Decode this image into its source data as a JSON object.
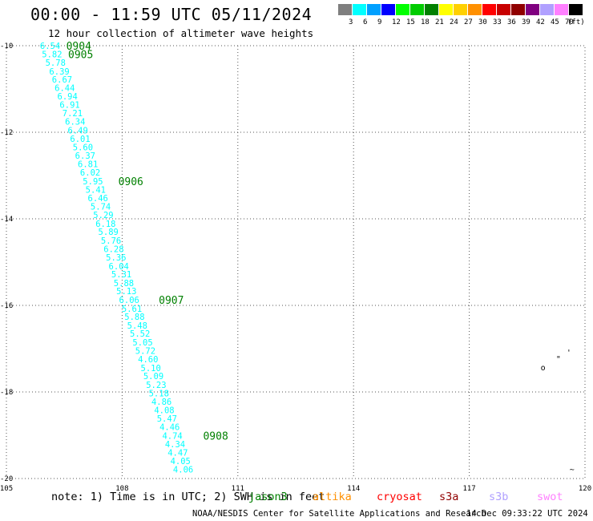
{
  "header": {
    "title": "00:00 - 11:59 UTC 05/11/2024",
    "subtitle": "12 hour collection of altimeter wave heights"
  },
  "color_scale": {
    "unit": "(ft)",
    "bins": [
      {
        "label": "3",
        "color": "#7f7f7f"
      },
      {
        "label": "6",
        "color": "#00ffff"
      },
      {
        "label": "9",
        "color": "#00a0ff"
      },
      {
        "label": "12",
        "color": "#0000ff"
      },
      {
        "label": "15",
        "color": "#00ff00"
      },
      {
        "label": "18",
        "color": "#00cc00"
      },
      {
        "label": "21",
        "color": "#008000"
      },
      {
        "label": "24",
        "color": "#ffff00"
      },
      {
        "label": "27",
        "color": "#ffd000"
      },
      {
        "label": "30",
        "color": "#ff9000"
      },
      {
        "label": "33",
        "color": "#ff0000"
      },
      {
        "label": "36",
        "color": "#c80000"
      },
      {
        "label": "39",
        "color": "#900000"
      },
      {
        "label": "42",
        "color": "#800080"
      },
      {
        "label": "45",
        "color": "#b0a0ff"
      },
      {
        "label": "70",
        "color": "#ff80ff"
      },
      {
        "label": "",
        "color": "#000000"
      }
    ]
  },
  "footer": {
    "note": "note: 1) Time is in UTC; 2) SWH is in feet",
    "missions": [
      {
        "label": "jason3",
        "color": "#008000"
      },
      {
        "label": "altika",
        "color": "#ff9000"
      },
      {
        "label": "cryosat",
        "color": "#ff0000"
      },
      {
        "label": "s3a",
        "color": "#900000"
      },
      {
        "label": "s3b",
        "color": "#b0a0ff"
      },
      {
        "label": "swot",
        "color": "#ff80ff"
      }
    ],
    "credit": "NOAA/NESDIS Center for Satellite Applications and Research",
    "timestamp": "14 Dec 09:33:22 UTC 2024"
  },
  "chart_data": {
    "type": "scatter",
    "x_ticks": [
      "105",
      "108",
      "111",
      "114",
      "117",
      "120"
    ],
    "y_ticks": [
      "-10",
      "-12",
      "-14",
      "-16",
      "-18",
      "-20"
    ],
    "xlim": [
      105,
      120
    ],
    "ylim": [
      -20,
      -10
    ],
    "grid": true,
    "track_color": "#00ffff",
    "time_label_color": "#008000",
    "track": [
      {
        "lon": 105.87,
        "lat": -10.0,
        "swh": "6.54"
      },
      {
        "lon": 105.92,
        "lat": -10.19,
        "swh": "5.82"
      },
      {
        "lon": 106.01,
        "lat": -10.39,
        "swh": "5.78"
      },
      {
        "lon": 106.11,
        "lat": -10.59,
        "swh": "6.39"
      },
      {
        "lon": 106.18,
        "lat": -10.78,
        "swh": "6.67"
      },
      {
        "lon": 106.25,
        "lat": -10.97,
        "swh": "6.44"
      },
      {
        "lon": 106.32,
        "lat": -11.17,
        "swh": "6.94"
      },
      {
        "lon": 106.38,
        "lat": -11.36,
        "swh": "6.91"
      },
      {
        "lon": 106.45,
        "lat": -11.56,
        "swh": "7.21"
      },
      {
        "lon": 106.52,
        "lat": -11.75,
        "swh": "6.34"
      },
      {
        "lon": 106.59,
        "lat": -11.95,
        "swh": "6.49"
      },
      {
        "lon": 106.65,
        "lat": -12.15,
        "swh": "6.01"
      },
      {
        "lon": 106.72,
        "lat": -12.34,
        "swh": "5.60"
      },
      {
        "lon": 106.78,
        "lat": -12.54,
        "swh": "6.37"
      },
      {
        "lon": 106.85,
        "lat": -12.73,
        "swh": "6.81"
      },
      {
        "lon": 106.91,
        "lat": -12.93,
        "swh": "6.02"
      },
      {
        "lon": 106.98,
        "lat": -13.13,
        "swh": "5.95"
      },
      {
        "lon": 107.05,
        "lat": -13.32,
        "swh": "5.41"
      },
      {
        "lon": 107.11,
        "lat": -13.52,
        "swh": "6.46"
      },
      {
        "lon": 107.18,
        "lat": -13.71,
        "swh": "5.74"
      },
      {
        "lon": 107.25,
        "lat": -13.91,
        "swh": "5.29"
      },
      {
        "lon": 107.31,
        "lat": -14.11,
        "swh": "6.18"
      },
      {
        "lon": 107.38,
        "lat": -14.3,
        "swh": "5.89"
      },
      {
        "lon": 107.45,
        "lat": -14.5,
        "swh": "5.76"
      },
      {
        "lon": 107.52,
        "lat": -14.69,
        "swh": "6.28"
      },
      {
        "lon": 107.58,
        "lat": -14.89,
        "swh": "5.36"
      },
      {
        "lon": 107.65,
        "lat": -15.09,
        "swh": "6.04"
      },
      {
        "lon": 107.72,
        "lat": -15.28,
        "swh": "5.31"
      },
      {
        "lon": 107.78,
        "lat": -15.48,
        "swh": "5.88"
      },
      {
        "lon": 107.85,
        "lat": -15.67,
        "swh": "5.13"
      },
      {
        "lon": 107.92,
        "lat": -15.87,
        "swh": "6.06"
      },
      {
        "lon": 107.99,
        "lat": -16.07,
        "swh": "5.61"
      },
      {
        "lon": 108.06,
        "lat": -16.26,
        "swh": "5.88"
      },
      {
        "lon": 108.13,
        "lat": -16.46,
        "swh": "5.48"
      },
      {
        "lon": 108.2,
        "lat": -16.65,
        "swh": "5.52"
      },
      {
        "lon": 108.27,
        "lat": -16.85,
        "swh": "5.05"
      },
      {
        "lon": 108.34,
        "lat": -17.05,
        "swh": "5.72"
      },
      {
        "lon": 108.41,
        "lat": -17.24,
        "swh": "4.60"
      },
      {
        "lon": 108.48,
        "lat": -17.44,
        "swh": "5.10"
      },
      {
        "lon": 108.55,
        "lat": -17.63,
        "swh": "5.09"
      },
      {
        "lon": 108.62,
        "lat": -17.83,
        "swh": "5.23"
      },
      {
        "lon": 108.69,
        "lat": -18.03,
        "swh": "5.18"
      },
      {
        "lon": 108.76,
        "lat": -18.22,
        "swh": "4.86"
      },
      {
        "lon": 108.83,
        "lat": -18.42,
        "swh": "4.08"
      },
      {
        "lon": 108.9,
        "lat": -18.61,
        "swh": "5.47"
      },
      {
        "lon": 108.97,
        "lat": -18.81,
        "swh": "4.46"
      },
      {
        "lon": 109.04,
        "lat": -19.01,
        "swh": "4.74"
      },
      {
        "lon": 109.11,
        "lat": -19.2,
        "swh": "4.34"
      },
      {
        "lon": 109.18,
        "lat": -19.4,
        "swh": "4.47"
      },
      {
        "lon": 109.25,
        "lat": -19.59,
        "swh": "4.05"
      },
      {
        "lon": 109.32,
        "lat": -19.79,
        "swh": "4.06"
      }
    ],
    "time_labels": [
      {
        "text": "0904",
        "lon": 106.55,
        "lat": -10.0
      },
      {
        "text": "0905",
        "lon": 106.6,
        "lat": -10.19
      },
      {
        "text": "0906",
        "lon": 107.9,
        "lat": -13.13
      },
      {
        "text": "0907",
        "lon": 108.95,
        "lat": -15.87
      },
      {
        "text": "0908",
        "lon": 110.1,
        "lat": -19.01
      }
    ],
    "islands": [
      {
        "lon": 119.52,
        "lat": -17.15,
        "mark": "'"
      },
      {
        "lon": 119.25,
        "lat": -17.3,
        "mark": "\""
      },
      {
        "lon": 118.85,
        "lat": -17.5,
        "mark": "o"
      },
      {
        "lon": 119.6,
        "lat": -19.85,
        "mark": "~"
      }
    ]
  }
}
